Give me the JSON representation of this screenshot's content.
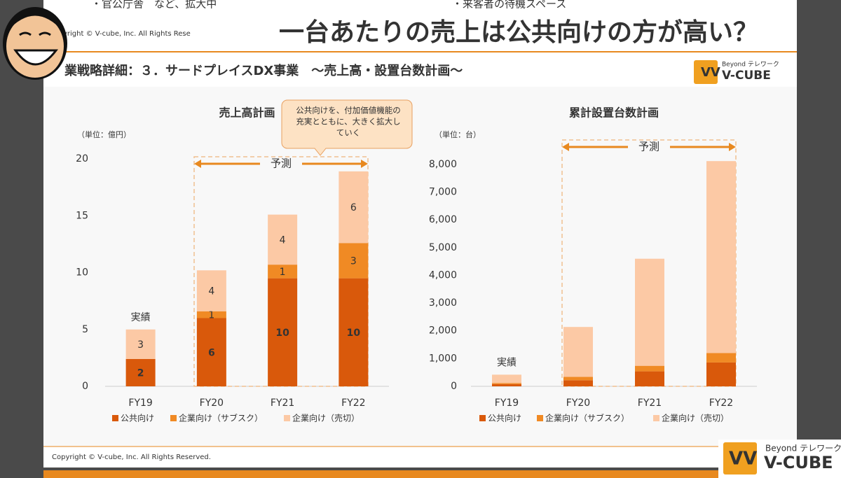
{
  "banner": "一台あたりの売上は公共向けの方が高い？",
  "prev_slide": {
    "left_bullet": "・官公庁舎　など、拡大中",
    "right_bullet": "・来客者の待機スペース",
    "copyright": "yright © V-cube, Inc. All Rights Rese"
  },
  "header": {
    "title": "業戦略詳細：３．サードプレイスDX事業　～売上高・設置台数計画～",
    "logo_tagline": "Beyond テレワーク",
    "logo_name": "V-CUBE"
  },
  "footer": {
    "copyright": "Copyright © V-cube, Inc. All Rights Reserved."
  },
  "corner_logo": {
    "tagline": "Beyond テレワーク",
    "name": "V-CUBE"
  },
  "chart_data": [
    {
      "type": "bar",
      "stacked": true,
      "title": "売上高計画",
      "unit_label": "（単位：億円）",
      "categories": [
        "FY19",
        "FY20",
        "FY21",
        "FY22"
      ],
      "series": [
        {
          "name": "公共向け",
          "color": "#d9590b",
          "values": [
            2.4,
            6.0,
            9.5,
            9.5
          ],
          "value_labels": [
            "2",
            "6",
            "10",
            "10"
          ]
        },
        {
          "name": "企業向け（サブスク）",
          "color": "#f08a24",
          "values": [
            0,
            0.6,
            1.2,
            3.1
          ],
          "value_labels": [
            null,
            "1",
            "1",
            "3"
          ]
        },
        {
          "name": "企業向け（売切）",
          "color": "#fcc9a5",
          "values": [
            2.6,
            3.6,
            4.4,
            6.3
          ],
          "value_labels": [
            "3",
            "4",
            "4",
            "6"
          ]
        }
      ],
      "ylim": [
        0,
        20
      ],
      "yticks": [
        0,
        5,
        10,
        15,
        20
      ],
      "actual_label": "実績",
      "forecast_label": "予測",
      "callout": [
        "公共向けを、付加価値機能の",
        "充実とともに、大きく拡大し",
        "ていく"
      ]
    },
    {
      "type": "bar",
      "stacked": true,
      "title": "累計設置台数計画",
      "unit_label": "（単位：台）",
      "categories": [
        "FY19",
        "FY20",
        "FY21",
        "FY22"
      ],
      "series": [
        {
          "name": "公共向け",
          "color": "#d9590b",
          "values": [
            80,
            220,
            540,
            860
          ]
        },
        {
          "name": "企業向け（サブスク）",
          "color": "#f08a24",
          "values": [
            40,
            120,
            200,
            340
          ]
        },
        {
          "name": "企業向け（売切）",
          "color": "#fcc9a5",
          "values": [
            300,
            1800,
            3860,
            6920
          ]
        }
      ],
      "ylim": [
        0,
        8200
      ],
      "yticks": [
        0,
        {
          "value": 1000,
          "label": "1,000"
        },
        {
          "value": 2000,
          "label": "2,000"
        },
        {
          "value": 3000,
          "label": "3,000"
        },
        {
          "value": 4000,
          "label": "4,000"
        },
        {
          "value": 5000,
          "label": "5,000"
        },
        {
          "value": 6000,
          "label": "6,000"
        },
        {
          "value": 7000,
          "label": "7,000"
        },
        {
          "value": 8000,
          "label": "8,000"
        }
      ],
      "actual_label": "実績",
      "forecast_label": "予測"
    }
  ]
}
